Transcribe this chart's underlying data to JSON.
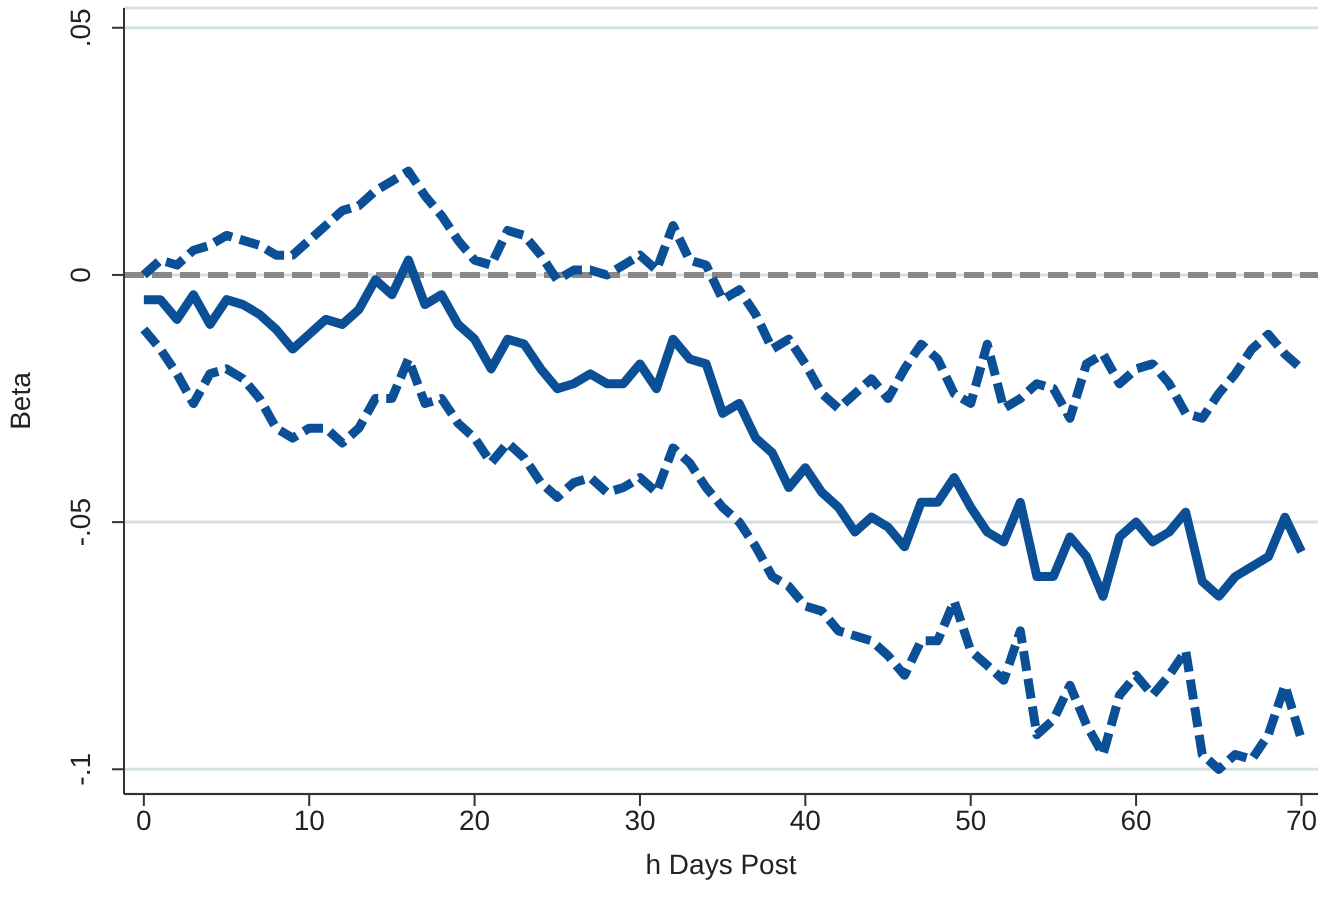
{
  "chart_data": {
    "type": "line",
    "xlabel": "h Days Post",
    "ylabel": "Beta",
    "x": [
      0,
      1,
      2,
      3,
      4,
      5,
      6,
      7,
      8,
      9,
      10,
      11,
      12,
      13,
      14,
      15,
      16,
      17,
      18,
      19,
      20,
      21,
      22,
      23,
      24,
      25,
      26,
      27,
      28,
      29,
      30,
      31,
      32,
      33,
      34,
      35,
      36,
      37,
      38,
      39,
      40,
      41,
      42,
      43,
      44,
      45,
      46,
      47,
      48,
      49,
      50,
      51,
      52,
      53,
      54,
      55,
      56,
      57,
      58,
      59,
      60,
      61,
      62,
      63,
      64,
      65,
      66,
      67,
      68,
      69,
      70
    ],
    "series": [
      {
        "color": "#0b4f96",
        "line_style": "solid",
        "values": [
          -0.005,
          -0.005,
          -0.009,
          -0.004,
          -0.01,
          -0.005,
          -0.006,
          -0.008,
          -0.011,
          -0.015,
          -0.012,
          -0.009,
          -0.01,
          -0.007,
          -0.001,
          -0.004,
          0.003,
          -0.006,
          -0.004,
          -0.01,
          -0.013,
          -0.019,
          -0.013,
          -0.014,
          -0.019,
          -0.023,
          -0.022,
          -0.02,
          -0.022,
          -0.022,
          -0.018,
          -0.023,
          -0.013,
          -0.017,
          -0.018,
          -0.028,
          -0.026,
          -0.033,
          -0.036,
          -0.043,
          -0.039,
          -0.044,
          -0.047,
          -0.052,
          -0.049,
          -0.051,
          -0.055,
          -0.046,
          -0.046,
          -0.041,
          -0.047,
          -0.052,
          -0.054,
          -0.046,
          -0.061,
          -0.061,
          -0.053,
          -0.057,
          -0.065,
          -0.053,
          -0.05,
          -0.054,
          -0.052,
          -0.048,
          -0.062,
          -0.065,
          -0.061,
          -0.059,
          -0.057,
          -0.049,
          -0.056
        ]
      },
      {
        "color": "#0b4f96",
        "line_style": "dashed",
        "values": [
          0,
          0.003,
          0.002,
          0.005,
          0.006,
          0.008,
          0.007,
          0.006,
          0.004,
          0.004,
          0.007,
          0.01,
          0.013,
          0.014,
          0.017,
          0.019,
          0.021,
          0.016,
          0.012,
          0.007,
          0.003,
          0.002,
          0.009,
          0.008,
          0.004,
          -0.001,
          0.001,
          0.001,
          0,
          0.002,
          0.004,
          0.001,
          0.01,
          0.003,
          0.002,
          -0.005,
          -0.003,
          -0.008,
          -0.015,
          -0.013,
          -0.018,
          -0.024,
          -0.027,
          -0.024,
          -0.021,
          -0.025,
          -0.019,
          -0.014,
          -0.017,
          -0.024,
          -0.026,
          -0.014,
          -0.027,
          -0.025,
          -0.022,
          -0.023,
          -0.029,
          -0.018,
          -0.016,
          -0.022,
          -0.019,
          -0.018,
          -0.022,
          -0.028,
          -0.029,
          -0.024,
          -0.02,
          -0.015,
          -0.012,
          -0.016,
          -0.019
        ]
      },
      {
        "color": "#0b4f96",
        "line_style": "dashed",
        "values": [
          -0.011,
          -0.015,
          -0.02,
          -0.026,
          -0.02,
          -0.019,
          -0.021,
          -0.025,
          -0.031,
          -0.033,
          -0.031,
          -0.031,
          -0.034,
          -0.031,
          -0.025,
          -0.025,
          -0.017,
          -0.026,
          -0.025,
          -0.03,
          -0.033,
          -0.038,
          -0.034,
          -0.037,
          -0.042,
          -0.045,
          -0.042,
          -0.041,
          -0.044,
          -0.043,
          -0.041,
          -0.044,
          -0.035,
          -0.038,
          -0.043,
          -0.047,
          -0.05,
          -0.055,
          -0.061,
          -0.063,
          -0.067,
          -0.068,
          -0.072,
          -0.073,
          -0.074,
          -0.077,
          -0.081,
          -0.074,
          -0.074,
          -0.066,
          -0.076,
          -0.079,
          -0.082,
          -0.072,
          -0.093,
          -0.09,
          -0.083,
          -0.091,
          -0.097,
          -0.085,
          -0.081,
          -0.085,
          -0.081,
          -0.076,
          -0.097,
          -0.1,
          -0.097,
          -0.098,
          -0.093,
          -0.083,
          -0.094
        ]
      }
    ],
    "xlim": [
      -1.2,
      71
    ],
    "xticks": [
      0,
      10,
      20,
      30,
      40,
      50,
      60,
      70
    ],
    "ylim": [
      -0.105,
      0.054
    ],
    "yticks": [
      {
        "value": 0.05,
        "label": ".05"
      },
      0,
      {
        "value": -0.05,
        "label": "-.05"
      },
      {
        "value": -0.1,
        "label": "-.1"
      }
    ],
    "grid": "y",
    "ref_lines": [
      {
        "axis": "y",
        "value": 0,
        "color": "#888888",
        "line_style": "dashed"
      }
    ]
  }
}
